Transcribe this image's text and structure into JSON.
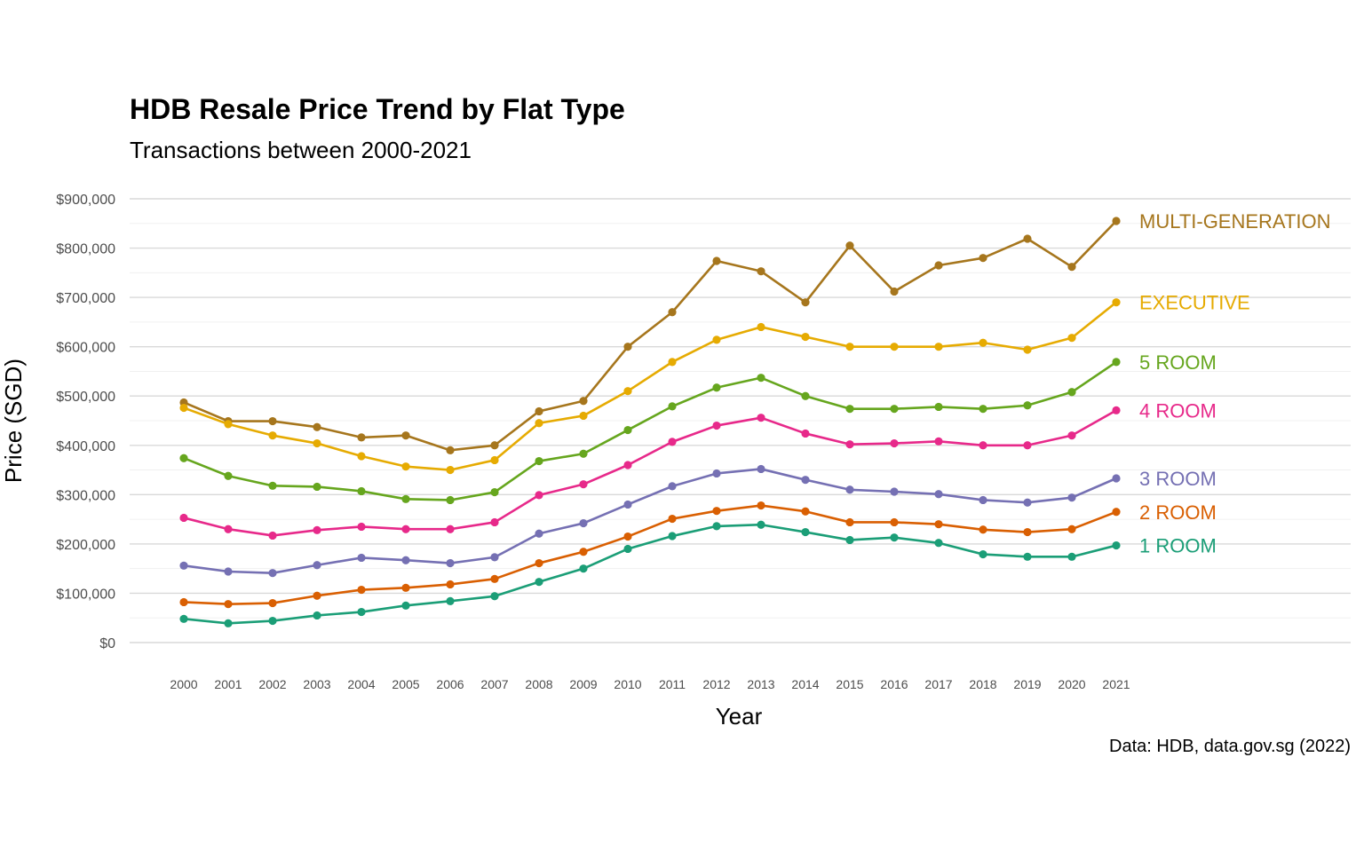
{
  "chart_data": {
    "type": "line",
    "title": "HDB Resale Price Trend by Flat Type",
    "subtitle": "Transactions between 2000-2021",
    "xlabel": "Year",
    "ylabel": "Price (SGD)",
    "caption": "Data: HDB, data.gov.sg (2022)",
    "ylim": [
      0,
      900000
    ],
    "ytick_values": [
      0,
      100000,
      200000,
      300000,
      400000,
      500000,
      600000,
      700000,
      800000,
      900000
    ],
    "ytick_labels": [
      "$0",
      "$100,000",
      "$200,000",
      "$300,000",
      "$400,000",
      "$500,000",
      "$600,000",
      "$700,000",
      "$800,000",
      "$900,000"
    ],
    "x": [
      "2000",
      "2001",
      "2002",
      "2003",
      "2004",
      "2005",
      "2006",
      "2007",
      "2008",
      "2009",
      "2010",
      "2011",
      "2012",
      "2013",
      "2014",
      "2015",
      "2016",
      "2017",
      "2018",
      "2019",
      "2020",
      "2021"
    ],
    "grid": true,
    "legend": "direct labels at line ends",
    "series": [
      {
        "name": "MULTI-GENERATION",
        "color": "#A6761D",
        "values": [
          487000,
          449000,
          449000,
          437000,
          416000,
          420000,
          390000,
          400000,
          469000,
          490000,
          600000,
          670000,
          774000,
          753000,
          690000,
          805000,
          712000,
          765000,
          780000,
          819000,
          762000,
          855000
        ]
      },
      {
        "name": "EXECUTIVE",
        "color": "#E6AB02",
        "values": [
          476000,
          443000,
          420000,
          404000,
          378000,
          357000,
          350000,
          370000,
          445000,
          460000,
          510000,
          569000,
          614000,
          640000,
          620000,
          600000,
          600000,
          600000,
          608000,
          594000,
          618000,
          690000
        ]
      },
      {
        "name": "5 ROOM",
        "color": "#66A61E",
        "values": [
          374000,
          338000,
          318000,
          316000,
          307000,
          291000,
          289000,
          305000,
          368000,
          383000,
          431000,
          479000,
          517000,
          537000,
          500000,
          474000,
          474000,
          478000,
          474000,
          481000,
          508000,
          569000
        ]
      },
      {
        "name": "4 ROOM",
        "color": "#E7298A",
        "values": [
          253000,
          230000,
          217000,
          228000,
          235000,
          230000,
          230000,
          244000,
          299000,
          321000,
          360000,
          407000,
          440000,
          456000,
          424000,
          402000,
          404000,
          408000,
          400000,
          400000,
          420000,
          471000
        ]
      },
      {
        "name": "3 ROOM",
        "color": "#7570B3",
        "values": [
          156000,
          144000,
          141000,
          157000,
          172000,
          167000,
          161000,
          173000,
          221000,
          242000,
          280000,
          317000,
          343000,
          352000,
          330000,
          310000,
          306000,
          301000,
          289000,
          284000,
          294000,
          333000
        ]
      },
      {
        "name": "2 ROOM",
        "color": "#D95F02",
        "values": [
          82000,
          78000,
          80000,
          95000,
          107000,
          111000,
          118000,
          129000,
          161000,
          184000,
          215000,
          251000,
          267000,
          278000,
          266000,
          244000,
          244000,
          240000,
          229000,
          224000,
          230000,
          265000
        ]
      },
      {
        "name": "1 ROOM",
        "color": "#1B9E77",
        "values": [
          48000,
          39000,
          44000,
          55000,
          62000,
          75000,
          84000,
          94000,
          123000,
          150000,
          190000,
          216000,
          236000,
          239000,
          224000,
          208000,
          213000,
          202000,
          179000,
          174000,
          174000,
          197000
        ]
      }
    ]
  }
}
